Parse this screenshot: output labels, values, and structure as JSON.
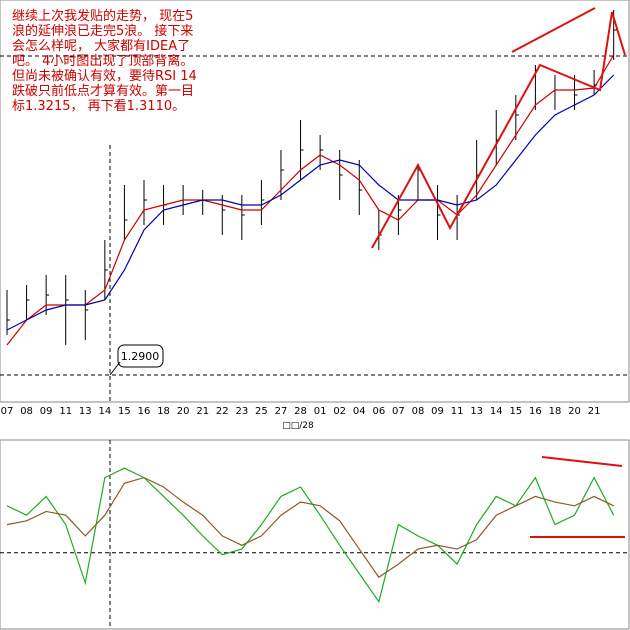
{
  "chart_data": {
    "type": "ohlc",
    "annotation_lines": [
      "继续上次我发贴的走势， 现在5",
      "浪的延伸浪已走完5浪。 接下来",
      "会怎么样呢， 大家都有IDEA了",
      "吧。 4小时图出现了顶部背离。",
      "但尚未被确认有效，要待RSI 14",
      "跌破只前低点才算有效。第一目",
      "标1.3215， 再下看1.3110。"
    ],
    "level_label": "1.2900",
    "level": 1.29,
    "month_label": "□□/28",
    "categories": [
      "07",
      "08",
      "09",
      "11",
      "13",
      "14",
      "15",
      "16",
      "18",
      "20",
      "21",
      "22",
      "23",
      "25",
      "27",
      "28",
      "01",
      "02",
      "04",
      "06",
      "07",
      "08",
      "09",
      "11",
      "13",
      "14",
      "15",
      "16",
      "18",
      "20",
      "21",
      null
    ],
    "ylim": [
      1.2873,
      1.3275
    ],
    "high": [
      1.2985,
      1.299,
      1.3,
      1.3,
      1.2985,
      1.3035,
      1.309,
      1.3095,
      1.309,
      1.309,
      1.3085,
      1.308,
      1.308,
      1.3095,
      1.3125,
      1.3155,
      1.314,
      1.3125,
      1.3115,
      1.3065,
      1.308,
      1.311,
      1.309,
      1.308,
      1.3135,
      1.3165,
      1.318,
      1.321,
      1.32,
      1.32,
      1.3205,
      1.3265
    ],
    "low": [
      1.294,
      1.2955,
      1.296,
      1.293,
      1.2935,
      1.2975,
      1.3035,
      1.305,
      1.305,
      1.306,
      1.306,
      1.304,
      1.3035,
      1.305,
      1.3075,
      1.3095,
      1.3105,
      1.3075,
      1.306,
      1.3025,
      1.304,
      1.3075,
      1.3035,
      1.3035,
      1.3075,
      1.311,
      1.3135,
      1.3165,
      1.3165,
      1.3165,
      1.318,
      1.3215
    ],
    "close": [
      1.2955,
      1.2975,
      1.298,
      1.2975,
      1.2965,
      1.3005,
      1.3055,
      1.3075,
      1.307,
      1.3075,
      1.3075,
      1.3065,
      1.306,
      1.3075,
      1.3105,
      1.3125,
      1.3125,
      1.31,
      1.3085,
      1.304,
      1.3065,
      1.3105,
      1.306,
      1.306,
      1.31,
      1.3135,
      1.316,
      1.3205,
      1.3185,
      1.318,
      1.319,
      1.3245
    ],
    "bar_color": "#000000",
    "series": [
      {
        "color": "#cc0000",
        "values": [
          1.293,
          1.2955,
          1.297,
          1.297,
          1.297,
          1.2985,
          1.3035,
          1.3065,
          1.307,
          1.3075,
          1.3075,
          1.307,
          1.3065,
          1.3065,
          1.3085,
          1.3105,
          1.312,
          1.311,
          1.3095,
          1.3065,
          1.3055,
          1.3075,
          1.3075,
          1.306,
          1.308,
          1.311,
          1.314,
          1.317,
          1.3185,
          1.3185,
          1.3187,
          1.322
        ]
      },
      {
        "color": "#0000aa",
        "values": [
          1.2945,
          1.2955,
          1.2965,
          1.297,
          1.297,
          1.2975,
          1.3005,
          1.3045,
          1.3065,
          1.307,
          1.3075,
          1.3075,
          1.307,
          1.307,
          1.308,
          1.3095,
          1.311,
          1.3115,
          1.311,
          1.309,
          1.3075,
          1.3075,
          1.3075,
          1.307,
          1.3075,
          1.309,
          1.3115,
          1.314,
          1.316,
          1.317,
          1.318,
          1.32
        ]
      }
    ],
    "rsi_ylim": [
      0,
      100
    ],
    "rsi_level": 40,
    "rsi_series": [
      {
        "color": "#22aa22",
        "values": [
          65,
          60,
          70,
          55,
          24,
          80,
          85,
          80,
          70,
          60,
          49,
          39,
          42,
          55,
          70,
          75,
          60,
          44,
          29,
          14,
          55,
          49,
          44,
          34,
          55,
          70,
          65,
          80,
          55,
          60,
          80,
          60
        ]
      },
      {
        "color": "#8b5a2b",
        "values": [
          55,
          57,
          62,
          60,
          49,
          60,
          77,
          80,
          75,
          67,
          60,
          49,
          44,
          49,
          60,
          67,
          65,
          57,
          42,
          27,
          34,
          42,
          44,
          42,
          47,
          60,
          65,
          70,
          67,
          65,
          70,
          65
        ]
      }
    ]
  }
}
